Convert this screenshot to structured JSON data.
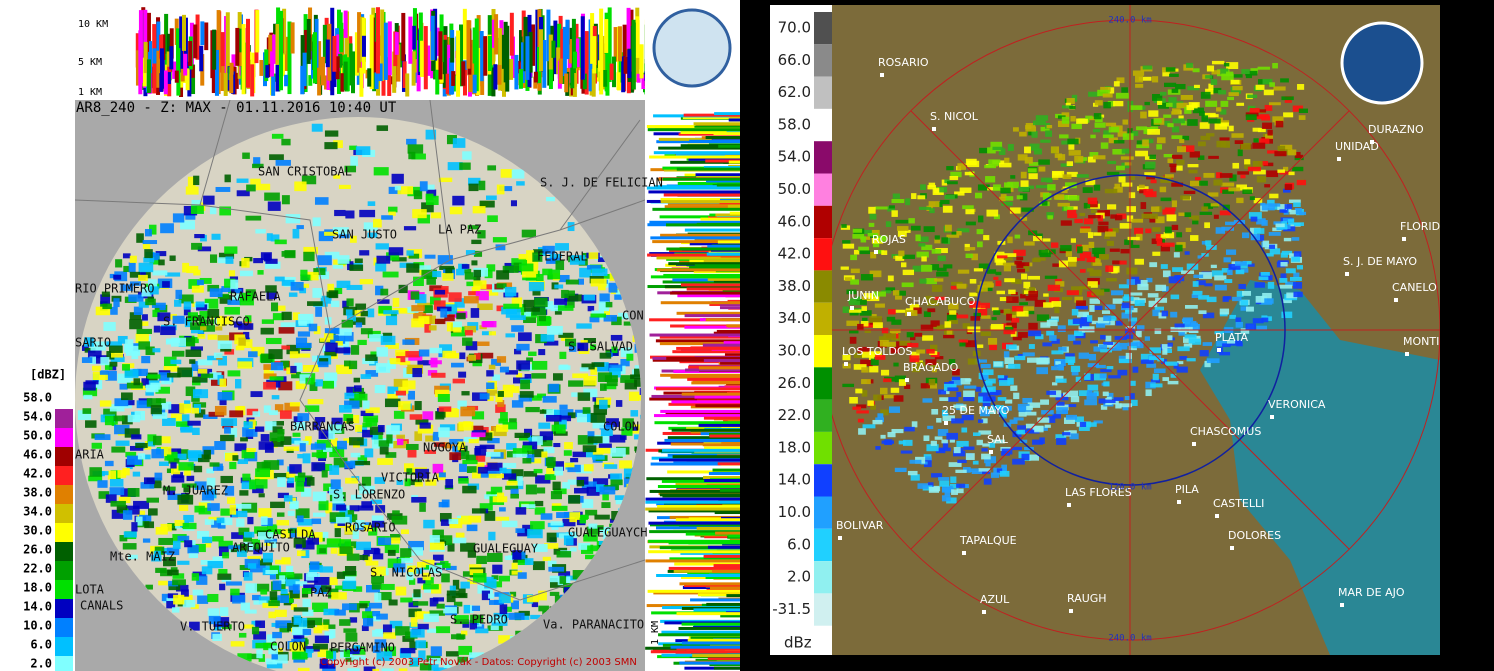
{
  "left_panel": {
    "profile_labels": [
      "10 KM",
      "5 KM",
      "1 KM"
    ],
    "header": "AR8_240 - Z: MAX - 01.11.2016 10:40 UT",
    "legend": {
      "title": "[dBZ]",
      "levels": [
        "58.0",
        "54.0",
        "50.0",
        "46.0",
        "42.0",
        "38.0",
        "34.0",
        "30.0",
        "26.0",
        "22.0",
        "18.0",
        "14.0",
        "10.0",
        "6.0",
        "2.0"
      ]
    },
    "cities": [
      "SAN CRISTOBAL",
      "S. J. DE FELICIAN",
      "SAN JUSTO",
      "LA PAZ",
      "FEDERAL",
      "RIO PRIMERO",
      "RAFAELA",
      "S. FRANCISCO",
      "SARIO",
      "CON",
      "S. SALVAD",
      "BARRANCAS",
      "NOGOYA",
      "COLON",
      "ARIA",
      "VICTORIA",
      "M. JUAREZ",
      "S. LORENZO",
      "CASILDA",
      "ROSARIO",
      "GUALEGUAYCH",
      "Mte. MAIZ",
      "AREQUITO",
      "GUALEGUAY",
      "S. NICOLAS",
      "LOTA",
      "CANALS",
      "PAZ",
      "S. PEDRO",
      "V. TUERTO",
      "Va. PARANACITO",
      "COLON",
      "PERGAMINO"
    ],
    "side_profile_label": "1 KM",
    "copyright": "Copyright (c) 2003 Petr Novák - Datos: Copyright (c) 2003 SMN"
  },
  "right_panel": {
    "legend": {
      "levels": [
        "70.0",
        "66.0",
        "62.0",
        "58.0",
        "54.0",
        "50.0",
        "46.0",
        "42.0",
        "38.0",
        "34.0",
        "30.0",
        "26.0",
        "22.0",
        "18.0",
        "14.0",
        "10.0",
        "6.0",
        "2.0",
        "-31.5"
      ],
      "unit": "dBz"
    },
    "range_labels": [
      "240.0 km",
      "120.0 km",
      "240.0 km"
    ],
    "cities": [
      "ROSARIO",
      "S. NICOL",
      "DURAZNO",
      "UNIDAD",
      "FLORID",
      "ROJAS",
      "S. J. DE MAYO",
      "CANELO",
      "JUNIN",
      "CHACABUCO",
      "MONTI",
      "PLATA",
      "LOS TOLDOS",
      "BRAGADO",
      "VERONICA",
      "25 DE MAYO",
      "CHASCOMUS",
      "SAL",
      "LAS FLORES",
      "PILA",
      "CASTELLI",
      "BOLIVAR",
      "TAPALQUE",
      "DOLORES",
      "MAR DE AJO",
      "AZUL",
      "RAUGH"
    ]
  }
}
